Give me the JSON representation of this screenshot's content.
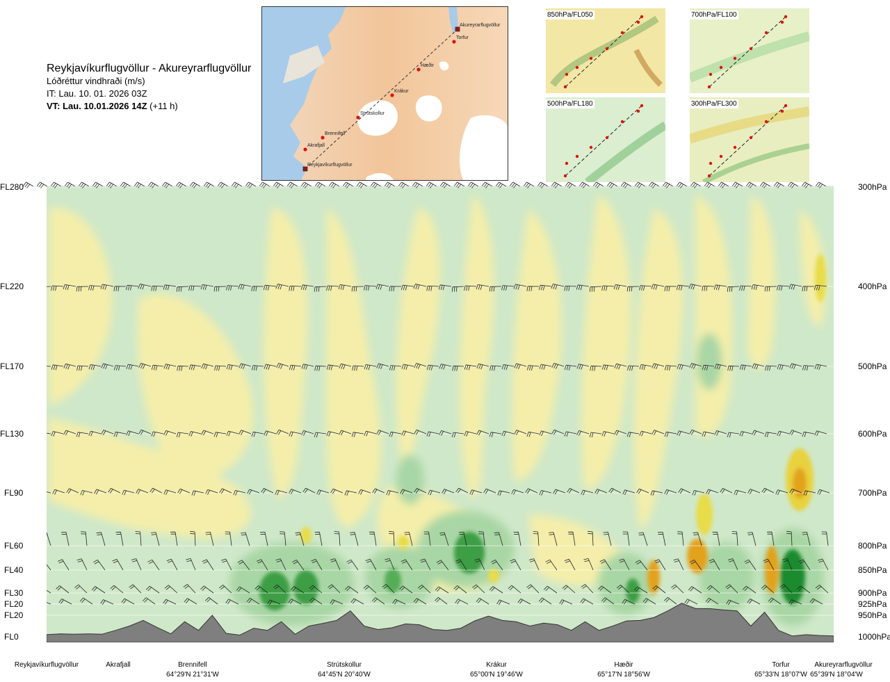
{
  "header": {
    "route": "Reykjavíkurflugvöllur - Akureyrarflugvöllur",
    "subtitle": "Lóðréttur vindhraði (m/s)",
    "issue_time": "IT: Lau. 10. 01. 2026 03Z",
    "valid_bold": "VT: Lau. 10.01.2026 14Z",
    "valid_offset": " (+11 h)"
  },
  "map": {
    "places": [
      {
        "name": "Akureyrarflugvöllur"
      },
      {
        "name": "Torfur"
      },
      {
        "name": "Hæðir"
      },
      {
        "name": "Krákur"
      },
      {
        "name": "Strútskollur"
      },
      {
        "name": "Brennifell"
      },
      {
        "name": "Akrafjall"
      },
      {
        "name": "Reykjavíkurflugvöllur"
      }
    ]
  },
  "mini_maps": [
    {
      "label": "850hPa/FL050",
      "bg": "#f3e7a6"
    },
    {
      "label": "700hPa/FL100",
      "bg": "#e7f0c7"
    },
    {
      "label": "500hPa/FL180",
      "bg": "#dbeed0"
    },
    {
      "label": "300hPa/FL300",
      "bg": "#e9eec0"
    }
  ],
  "levels": [
    {
      "fl": "FL280",
      "p": "300hPa"
    },
    {
      "fl": "FL220",
      "p": "400hPa"
    },
    {
      "fl": "FL170",
      "p": "500hPa"
    },
    {
      "fl": "FL130",
      "p": "600hPa"
    },
    {
      "fl": "FL90",
      "p": "700hPa"
    },
    {
      "fl": "FL60",
      "p": "800hPa"
    },
    {
      "fl": "FL40",
      "p": "850hPa"
    },
    {
      "fl": "FL30",
      "p": "900hPa"
    },
    {
      "fl": "FL20",
      "p": "925hPa"
    },
    {
      "fl": "FL20",
      "p": "950hPa"
    },
    {
      "fl": "FL0",
      "p": "1000hPa"
    }
  ],
  "locations": [
    {
      "name": "Reykjavíkurflugvöllur",
      "coord": ""
    },
    {
      "name": "Akrafjall",
      "coord": ""
    },
    {
      "name": "Brennifell",
      "coord": "64°29'N 21°31'W"
    },
    {
      "name": "Strútskollur",
      "coord": "64°45'N 20°40'W"
    },
    {
      "name": "Krákur",
      "coord": "65°00'N 19°46'W"
    },
    {
      "name": "Hæðir",
      "coord": "65°17'N 18°56'W"
    },
    {
      "name": "Torfur",
      "coord": "65°33'N 18°07'W"
    },
    {
      "name": "Akureyrarflugvöllur",
      "coord": "65°39'N 18°04'W"
    }
  ],
  "colors": {
    "dark_green": "#1e8a2e",
    "mid_green": "#7cc17e",
    "light_green": "#c9e6c4",
    "pale": "#f3f8e3",
    "pale_yellow": "#f4eeaa",
    "yellow": "#e8dc4a",
    "orange": "#e3a21c",
    "terrain": "#7f7f7f"
  },
  "chart_data": {
    "type": "heatmap",
    "title": "Reykjavíkurflugvöllur - Akureyrarflugvöllur",
    "quantity": "Lóðréttur vindhraði (m/s)",
    "y_levels_hPa": [
      300,
      400,
      500,
      600,
      700,
      800,
      850,
      900,
      925,
      950,
      1000
    ],
    "x_points": [
      "Reykjavíkurflugvöllur",
      "Akrafjall",
      "Brennifell",
      "Strútskollur",
      "Krákur",
      "Hæðir",
      "Torfur",
      "Akureyrarflugvöllur"
    ],
    "terrain_profile_hPa": [
      995,
      993,
      994,
      993,
      994,
      985,
      975,
      962,
      978,
      993,
      965,
      985,
      950,
      992,
      996,
      980,
      985,
      965,
      994,
      975,
      969,
      962,
      940,
      975,
      983,
      979,
      970,
      972,
      983,
      985,
      980,
      963,
      952,
      962,
      965,
      975,
      968,
      972,
      985,
      965,
      985,
      975,
      963,
      962,
      955,
      940,
      923,
      935,
      935,
      938,
      940,
      975,
      943,
      985,
      998,
      995,
      997,
      998
    ]
  }
}
